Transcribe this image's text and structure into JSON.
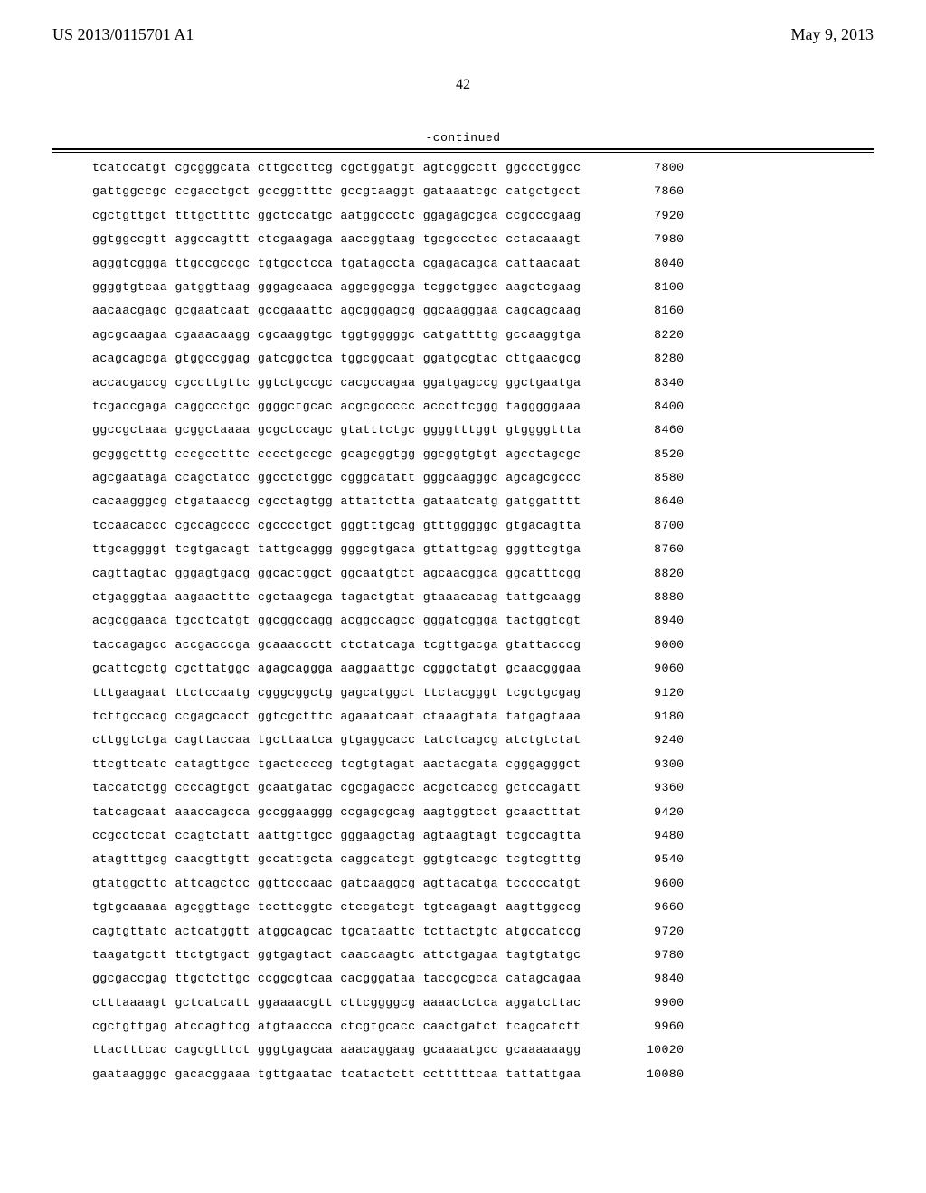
{
  "header": {
    "pub_number": "US 2013/0115701 A1",
    "pub_date": "May 9, 2013"
  },
  "page_number": "42",
  "continued_label": "-continued",
  "sequence": {
    "font_family": "Courier New",
    "font_size_pt": 10,
    "text_color": "#000000",
    "background_color": "#ffffff",
    "rule_color": "#000000",
    "rows": [
      {
        "chunks": [
          "tcatccatgt",
          "cgcgggcata",
          "cttgccttcg",
          "cgctggatgt",
          "agtcggcctt",
          "ggccctggcc"
        ],
        "pos": 7800
      },
      {
        "chunks": [
          "gattggccgc",
          "ccgacctgct",
          "gccggttttc",
          "gccgtaaggt",
          "gataaatcgc",
          "catgctgcct"
        ],
        "pos": 7860
      },
      {
        "chunks": [
          "cgctgttgct",
          "tttgcttttc",
          "ggctccatgc",
          "aatggccctc",
          "ggagagcgca",
          "ccgcccgaag"
        ],
        "pos": 7920
      },
      {
        "chunks": [
          "ggtggccgtt",
          "aggccagttt",
          "ctcgaagaga",
          "aaccggtaag",
          "tgcgccctcc",
          "cctacaaagt"
        ],
        "pos": 7980
      },
      {
        "chunks": [
          "agggtcggga",
          "ttgccgccgc",
          "tgtgcctcca",
          "tgatagccta",
          "cgagacagca",
          "cattaacaat"
        ],
        "pos": 8040
      },
      {
        "chunks": [
          "ggggtgtcaa",
          "gatggttaag",
          "gggagcaaca",
          "aggcggcgga",
          "tcggctggcc",
          "aagctcgaag"
        ],
        "pos": 8100
      },
      {
        "chunks": [
          "aacaacgagc",
          "gcgaatcaat",
          "gccgaaattc",
          "agcgggagcg",
          "ggcaagggaa",
          "cagcagcaag"
        ],
        "pos": 8160
      },
      {
        "chunks": [
          "agcgcaagaa",
          "cgaaacaagg",
          "cgcaaggtgc",
          "tggtgggggc",
          "catgattttg",
          "gccaaggtga"
        ],
        "pos": 8220
      },
      {
        "chunks": [
          "acagcagcga",
          "gtggccggag",
          "gatcggctca",
          "tggcggcaat",
          "ggatgcgtac",
          "cttgaacgcg"
        ],
        "pos": 8280
      },
      {
        "chunks": [
          "accacgaccg",
          "cgccttgttc",
          "ggtctgccgc",
          "cacgccagaa",
          "ggatgagccg",
          "ggctgaatga"
        ],
        "pos": 8340
      },
      {
        "chunks": [
          "tcgaccgaga",
          "caggccctgc",
          "ggggctgcac",
          "acgcgccccc",
          "acccttcggg",
          "tagggggaaa"
        ],
        "pos": 8400
      },
      {
        "chunks": [
          "ggccgctaaa",
          "gcggctaaaa",
          "gcgctccagc",
          "gtatttctgc",
          "ggggtttggt",
          "gtggggttta"
        ],
        "pos": 8460
      },
      {
        "chunks": [
          "gcgggctttg",
          "cccgcctttc",
          "cccctgccgc",
          "gcagcggtgg",
          "ggcggtgtgt",
          "agcctagcgc"
        ],
        "pos": 8520
      },
      {
        "chunks": [
          "agcgaataga",
          "ccagctatcc",
          "ggcctctggc",
          "cgggcatatt",
          "gggcaagggc",
          "agcagcgccc"
        ],
        "pos": 8580
      },
      {
        "chunks": [
          "cacaagggcg",
          "ctgataaccg",
          "cgcctagtgg",
          "attattctta",
          "gataatcatg",
          "gatggatttt"
        ],
        "pos": 8640
      },
      {
        "chunks": [
          "tccaacaccc",
          "cgccagcccc",
          "cgcccctgct",
          "gggtttgcag",
          "gtttgggggc",
          "gtgacagtta"
        ],
        "pos": 8700
      },
      {
        "chunks": [
          "ttgcaggggt",
          "tcgtgacagt",
          "tattgcaggg",
          "gggcgtgaca",
          "gttattgcag",
          "gggttcgtga"
        ],
        "pos": 8760
      },
      {
        "chunks": [
          "cagttagtac",
          "gggagtgacg",
          "ggcactggct",
          "ggcaatgtct",
          "agcaacggca",
          "ggcatttcgg"
        ],
        "pos": 8820
      },
      {
        "chunks": [
          "ctgagggtaa",
          "aagaactttc",
          "cgctaagcga",
          "tagactgtat",
          "gtaaacacag",
          "tattgcaagg"
        ],
        "pos": 8880
      },
      {
        "chunks": [
          "acgcggaaca",
          "tgcctcatgt",
          "ggcggccagg",
          "acggccagcc",
          "gggatcggga",
          "tactggtcgt"
        ],
        "pos": 8940
      },
      {
        "chunks": [
          "taccagagcc",
          "accgacccga",
          "gcaaaccctt",
          "ctctatcaga",
          "tcgttgacga",
          "gtattacccg"
        ],
        "pos": 9000
      },
      {
        "chunks": [
          "gcattcgctg",
          "cgcttatggc",
          "agagcaggga",
          "aaggaattgc",
          "cgggctatgt",
          "gcaacgggaa"
        ],
        "pos": 9060
      },
      {
        "chunks": [
          "tttgaagaat",
          "ttctccaatg",
          "cgggcggctg",
          "gagcatggct",
          "ttctacgggt",
          "tcgctgcgag"
        ],
        "pos": 9120
      },
      {
        "chunks": [
          "tcttgccacg",
          "ccgagcacct",
          "ggtcgctttc",
          "agaaatcaat",
          "ctaaagtata",
          "tatgagtaaa"
        ],
        "pos": 9180
      },
      {
        "chunks": [
          "cttggtctga",
          "cagttaccaa",
          "tgcttaatca",
          "gtgaggcacc",
          "tatctcagcg",
          "atctgtctat"
        ],
        "pos": 9240
      },
      {
        "chunks": [
          "ttcgttcatc",
          "catagttgcc",
          "tgactccccg",
          "tcgtgtagat",
          "aactacgata",
          "cgggagggct"
        ],
        "pos": 9300
      },
      {
        "chunks": [
          "taccatctgg",
          "ccccagtgct",
          "gcaatgatac",
          "cgcgagaccc",
          "acgctcaccg",
          "gctccagatt"
        ],
        "pos": 9360
      },
      {
        "chunks": [
          "tatcagcaat",
          "aaaccagcca",
          "gccggaaggg",
          "ccgagcgcag",
          "aagtggtcct",
          "gcaactttat"
        ],
        "pos": 9420
      },
      {
        "chunks": [
          "ccgcctccat",
          "ccagtctatt",
          "aattgttgcc",
          "gggaagctag",
          "agtaagtagt",
          "tcgccagtta"
        ],
        "pos": 9480
      },
      {
        "chunks": [
          "atagtttgcg",
          "caacgttgtt",
          "gccattgcta",
          "caggcatcgt",
          "ggtgtcacgc",
          "tcgtcgtttg"
        ],
        "pos": 9540
      },
      {
        "chunks": [
          "gtatggcttc",
          "attcagctcc",
          "ggttcccaac",
          "gatcaaggcg",
          "agttacatga",
          "tcccccatgt"
        ],
        "pos": 9600
      },
      {
        "chunks": [
          "tgtgcaaaaa",
          "agcggttagc",
          "tccttcggtc",
          "ctccgatcgt",
          "tgtcagaagt",
          "aagttggccg"
        ],
        "pos": 9660
      },
      {
        "chunks": [
          "cagtgttatc",
          "actcatggtt",
          "atggcagcac",
          "tgcataattc",
          "tcttactgtc",
          "atgccatccg"
        ],
        "pos": 9720
      },
      {
        "chunks": [
          "taagatgctt",
          "ttctgtgact",
          "ggtgagtact",
          "caaccaagtc",
          "attctgagaa",
          "tagtgtatgc"
        ],
        "pos": 9780
      },
      {
        "chunks": [
          "ggcgaccgag",
          "ttgctcttgc",
          "ccggcgtcaa",
          "cacgggataa",
          "taccgcgcca",
          "catagcagaa"
        ],
        "pos": 9840
      },
      {
        "chunks": [
          "ctttaaaagt",
          "gctcatcatt",
          "ggaaaacgtt",
          "cttcggggcg",
          "aaaactctca",
          "aggatcttac"
        ],
        "pos": 9900
      },
      {
        "chunks": [
          "cgctgttgag",
          "atccagttcg",
          "atgtaaccca",
          "ctcgtgcacc",
          "caactgatct",
          "tcagcatctt"
        ],
        "pos": 9960
      },
      {
        "chunks": [
          "ttactttcac",
          "cagcgtttct",
          "gggtgagcaa",
          "aaacaggaag",
          "gcaaaatgcc",
          "gcaaaaaagg"
        ],
        "pos": 10020
      },
      {
        "chunks": [
          "gaataagggc",
          "gacacggaaa",
          "tgttgaatac",
          "tcatactctt",
          "cctttttcaa",
          "tattattgaa"
        ],
        "pos": 10080
      }
    ]
  }
}
